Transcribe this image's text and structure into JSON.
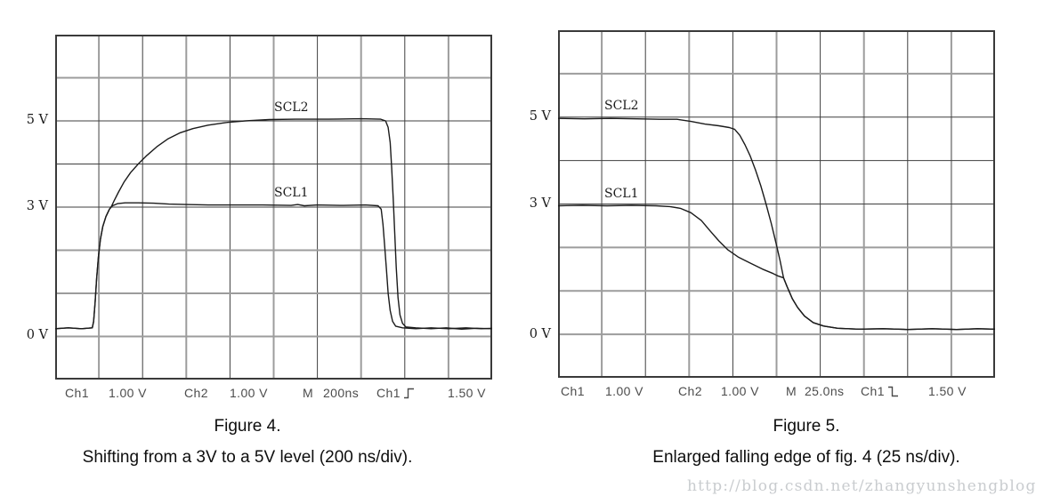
{
  "watermark": "http://blog.csdn.net/zhangyunshengblog",
  "chart_data": [
    {
      "type": "line",
      "figure_label": "Figure 4.",
      "caption": "Shifting from a 3V to a 5V level (200 ns/div).",
      "divisions": {
        "x": 10,
        "y": 8
      },
      "x_range_ns": [
        0,
        2000
      ],
      "y_range_volts": [
        -1,
        7
      ],
      "volts_per_div": 1.0,
      "grid": true,
      "y_ticks": [
        {
          "label": "5 V",
          "volts": 5
        },
        {
          "label": "3 V",
          "volts": 3
        },
        {
          "label": "0 V",
          "volts": 0
        }
      ],
      "readout": {
        "ch1_name": "Ch1",
        "ch1_scale": "1.00 V",
        "ch2_name": "Ch2",
        "ch2_scale": "1.00 V",
        "m_label": "M",
        "timebase": "200ns",
        "trigger_source": "Ch1",
        "trigger_edge": "rising",
        "trigger_level": "1.50 V"
      },
      "series": [
        {
          "name": "SCL2",
          "points": [
            [
              0,
              0.18
            ],
            [
              60,
              0.2
            ],
            [
              120,
              0.18
            ],
            [
              170,
              0.2
            ],
            [
              176,
              0.35
            ],
            [
              183,
              0.8
            ],
            [
              190,
              1.35
            ],
            [
              198,
              1.85
            ],
            [
              207,
              2.25
            ],
            [
              218,
              2.55
            ],
            [
              232,
              2.78
            ],
            [
              248,
              2.95
            ],
            [
              258,
              3.02
            ],
            [
              270,
              3.15
            ],
            [
              290,
              3.35
            ],
            [
              315,
              3.58
            ],
            [
              345,
              3.8
            ],
            [
              380,
              4.0
            ],
            [
              420,
              4.2
            ],
            [
              465,
              4.4
            ],
            [
              515,
              4.58
            ],
            [
              570,
              4.72
            ],
            [
              630,
              4.82
            ],
            [
              700,
              4.9
            ],
            [
              780,
              4.96
            ],
            [
              870,
              5.0
            ],
            [
              980,
              5.03
            ],
            [
              1100,
              5.04
            ],
            [
              1250,
              5.04
            ],
            [
              1400,
              5.05
            ],
            [
              1490,
              5.04
            ],
            [
              1512,
              5.0
            ],
            [
              1524,
              4.85
            ],
            [
              1533,
              4.5
            ],
            [
              1540,
              3.9
            ],
            [
              1547,
              3.2
            ],
            [
              1554,
              2.4
            ],
            [
              1561,
              1.6
            ],
            [
              1569,
              0.9
            ],
            [
              1578,
              0.5
            ],
            [
              1590,
              0.3
            ],
            [
              1605,
              0.22
            ],
            [
              1650,
              0.2
            ],
            [
              1720,
              0.18
            ],
            [
              1790,
              0.2
            ],
            [
              1860,
              0.17
            ],
            [
              1930,
              0.19
            ],
            [
              2000,
              0.18
            ]
          ]
        },
        {
          "name": "SCL1",
          "points": [
            [
              0,
              0.18
            ],
            [
              60,
              0.2
            ],
            [
              120,
              0.18
            ],
            [
              170,
              0.2
            ],
            [
              176,
              0.35
            ],
            [
              183,
              0.8
            ],
            [
              190,
              1.35
            ],
            [
              198,
              1.85
            ],
            [
              207,
              2.25
            ],
            [
              218,
              2.55
            ],
            [
              232,
              2.78
            ],
            [
              248,
              2.95
            ],
            [
              262,
              3.03
            ],
            [
              285,
              3.08
            ],
            [
              320,
              3.1
            ],
            [
              380,
              3.1
            ],
            [
              450,
              3.09
            ],
            [
              520,
              3.07
            ],
            [
              600,
              3.06
            ],
            [
              700,
              3.05
            ],
            [
              820,
              3.05
            ],
            [
              950,
              3.05
            ],
            [
              1080,
              3.04
            ],
            [
              1110,
              3.06
            ],
            [
              1140,
              3.03
            ],
            [
              1200,
              3.05
            ],
            [
              1320,
              3.04
            ],
            [
              1420,
              3.05
            ],
            [
              1478,
              3.03
            ],
            [
              1492,
              2.95
            ],
            [
              1500,
              2.6
            ],
            [
              1508,
              2.1
            ],
            [
              1516,
              1.55
            ],
            [
              1524,
              1.0
            ],
            [
              1533,
              0.6
            ],
            [
              1544,
              0.35
            ],
            [
              1558,
              0.24
            ],
            [
              1590,
              0.2
            ],
            [
              1650,
              0.18
            ],
            [
              1720,
              0.2
            ],
            [
              1800,
              0.18
            ],
            [
              1880,
              0.2
            ],
            [
              1950,
              0.18
            ],
            [
              2000,
              0.19
            ]
          ]
        }
      ]
    },
    {
      "type": "line",
      "figure_label": "Figure 5.",
      "caption": "Enlarged falling edge of fig. 4 (25 ns/div).",
      "divisions": {
        "x": 10,
        "y": 8
      },
      "x_range_ns": [
        0,
        250
      ],
      "y_range_volts": [
        -1,
        7
      ],
      "volts_per_div": 1.0,
      "grid": true,
      "y_ticks": [
        {
          "label": "5 V",
          "volts": 5
        },
        {
          "label": "3 V",
          "volts": 3
        },
        {
          "label": "0 V",
          "volts": 0
        }
      ],
      "readout": {
        "ch1_name": "Ch1",
        "ch1_scale": "1.00 V",
        "ch2_name": "Ch2",
        "ch2_scale": "1.00 V",
        "m_label": "M",
        "timebase": "25.0ns",
        "trigger_source": "Ch1",
        "trigger_edge": "falling",
        "trigger_level": "1.50 V"
      },
      "series": [
        {
          "name": "SCL2",
          "points": [
            [
              0,
              4.97
            ],
            [
              15,
              4.96
            ],
            [
              30,
              4.97
            ],
            [
              45,
              4.96
            ],
            [
              58,
              4.95
            ],
            [
              68,
              4.95
            ],
            [
              76,
              4.9
            ],
            [
              84,
              4.84
            ],
            [
              92,
              4.8
            ],
            [
              98,
              4.76
            ],
            [
              101,
              4.72
            ],
            [
              104,
              4.58
            ],
            [
              107,
              4.36
            ],
            [
              110,
              4.1
            ],
            [
              113,
              3.78
            ],
            [
              116,
              3.42
            ],
            [
              119,
              3.0
            ],
            [
              122,
              2.55
            ],
            [
              125,
              2.05
            ],
            [
              127,
              1.7
            ],
            [
              129,
              1.3
            ],
            [
              131,
              1.1
            ],
            [
              134,
              0.82
            ],
            [
              137,
              0.62
            ],
            [
              141,
              0.42
            ],
            [
              146,
              0.27
            ],
            [
              152,
              0.19
            ],
            [
              160,
              0.14
            ],
            [
              172,
              0.12
            ],
            [
              186,
              0.13
            ],
            [
              200,
              0.11
            ],
            [
              214,
              0.13
            ],
            [
              228,
              0.11
            ],
            [
              240,
              0.13
            ],
            [
              250,
              0.12
            ]
          ]
        },
        {
          "name": "SCL1",
          "points": [
            [
              0,
              2.96
            ],
            [
              14,
              2.97
            ],
            [
              28,
              2.96
            ],
            [
              42,
              2.97
            ],
            [
              56,
              2.96
            ],
            [
              64,
              2.94
            ],
            [
              70,
              2.9
            ],
            [
              76,
              2.8
            ],
            [
              82,
              2.62
            ],
            [
              87,
              2.38
            ],
            [
              92,
              2.15
            ],
            [
              97,
              1.95
            ],
            [
              103,
              1.78
            ],
            [
              110,
              1.64
            ],
            [
              117,
              1.5
            ],
            [
              123,
              1.4
            ],
            [
              126,
              1.34
            ],
            [
              129,
              1.3
            ],
            [
              131,
              1.1
            ],
            [
              134,
              0.82
            ],
            [
              137,
              0.62
            ],
            [
              141,
              0.42
            ],
            [
              146,
              0.27
            ],
            [
              152,
              0.19
            ],
            [
              160,
              0.14
            ],
            [
              172,
              0.12
            ],
            [
              186,
              0.13
            ],
            [
              200,
              0.11
            ],
            [
              214,
              0.13
            ],
            [
              228,
              0.11
            ],
            [
              240,
              0.13
            ],
            [
              250,
              0.12
            ]
          ]
        }
      ]
    }
  ]
}
